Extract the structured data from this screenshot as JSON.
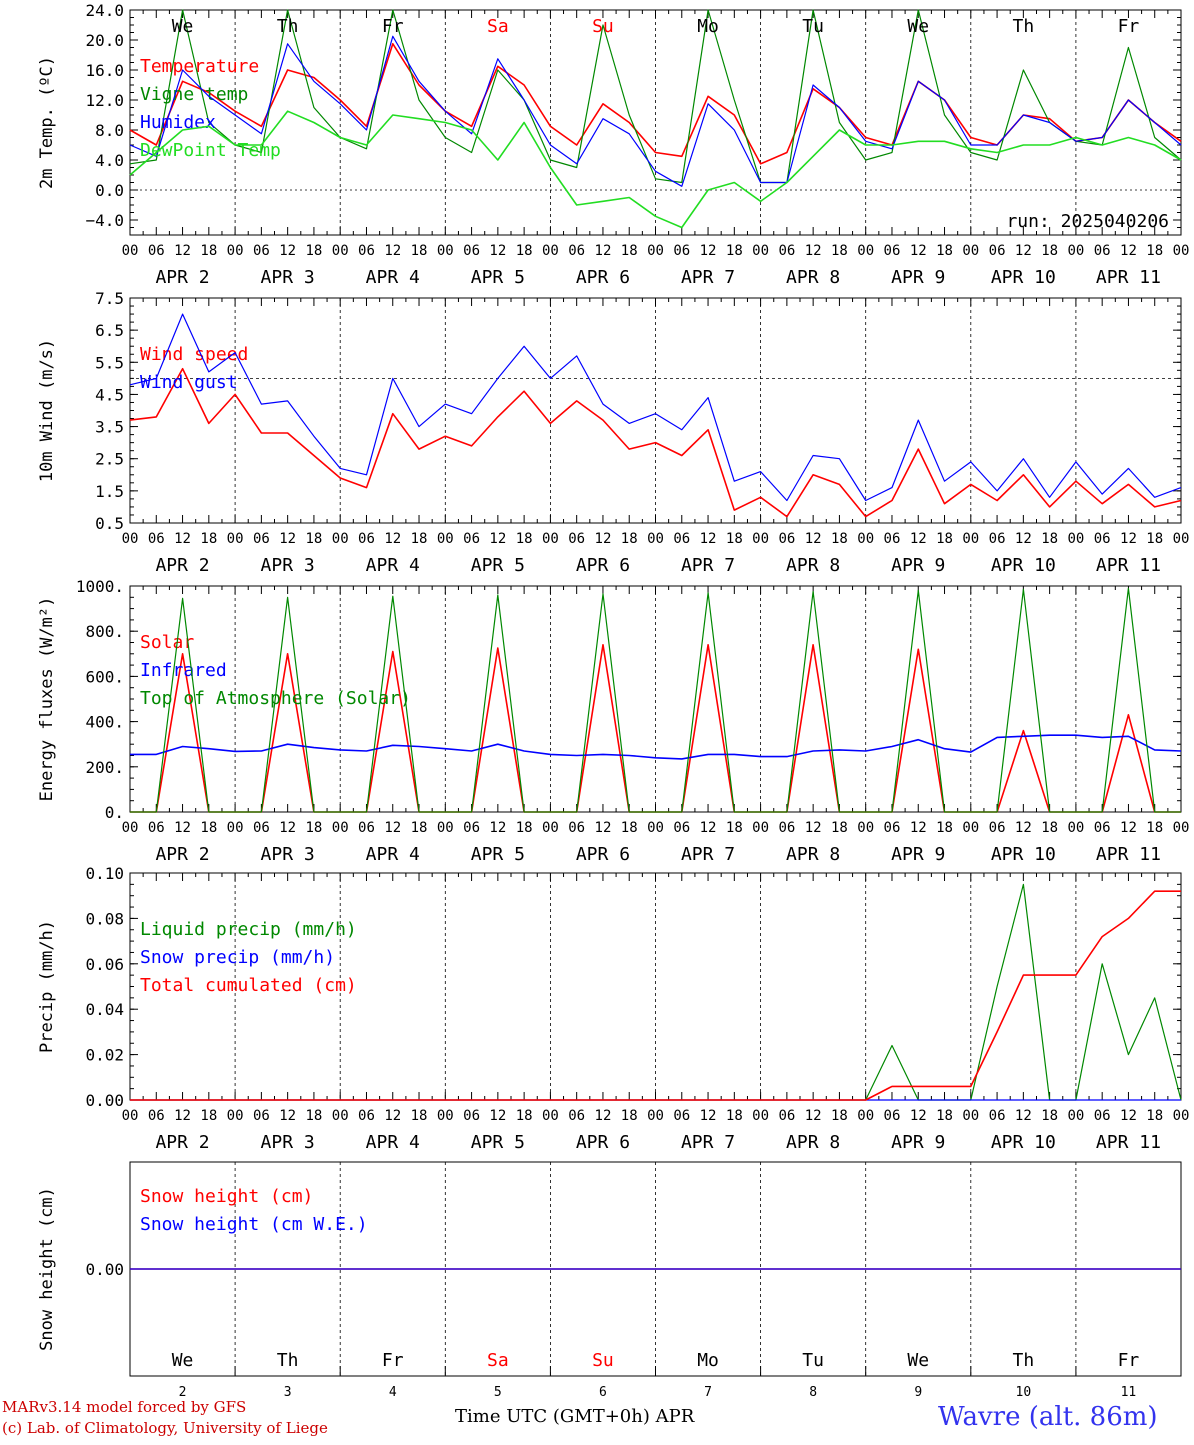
{
  "days": [
    "We",
    "Th",
    "Fr",
    "Sa",
    "Su",
    "Mo",
    "Tu",
    "We",
    "Th",
    "Fr"
  ],
  "day_colors": [
    "#000000",
    "#000000",
    "#000000",
    "#ff0000",
    "#ff0000",
    "#000000",
    "#000000",
    "#000000",
    "#000000",
    "#000000"
  ],
  "date_labels": [
    "APR  2",
    "APR  3",
    "APR  4",
    "APR  5",
    "APR  6",
    "APR  7",
    "APR  8",
    "APR  9",
    "APR 10",
    "APR 11"
  ],
  "hour_ticks": [
    "00",
    "06",
    "12",
    "18"
  ],
  "last_tick": "00",
  "bottom_day_numbers": [
    "2",
    "3",
    "4",
    "5",
    "6",
    "7",
    "8",
    "9",
    "10",
    "11"
  ],
  "footer": {
    "line1": "MARv3.14 model forced by GFS",
    "line2": "(c) Lab. of Climatology, University of Liege",
    "xlabel": "Time UTC (GMT+0h)",
    "month": "APR",
    "station": "Wavre (alt. 86m)"
  },
  "colors": {
    "red": "#ff0000",
    "green": "#008800",
    "blue": "#0000ff",
    "light_green": "#22dd22"
  },
  "chart_data": [
    {
      "type": "line",
      "ylabel": "2m Temp. (ºC)",
      "yticks": [
        "24.0",
        "20.0",
        "16.0",
        "12.0",
        "8.0",
        "4.0",
        "0.0",
        "−4.0"
      ],
      "ylim": [
        -6,
        24
      ],
      "annotation": "run: 2025040206",
      "x_hours": [
        0,
        6,
        12,
        18,
        24,
        30,
        36,
        42,
        48,
        54,
        60,
        66,
        72,
        78,
        84,
        90,
        96,
        102,
        108,
        114,
        120,
        126,
        132,
        138,
        144,
        150,
        156,
        162,
        168,
        174,
        180,
        186,
        192,
        198,
        204,
        210,
        216,
        222,
        228,
        234,
        240
      ],
      "series": [
        {
          "name": "Temperature",
          "color": "red",
          "values": [
            8,
            6,
            14.5,
            13,
            10.5,
            8.5,
            16,
            15,
            12,
            8.5,
            19.5,
            14,
            10.5,
            8.5,
            16.5,
            14,
            8.5,
            6,
            11.5,
            9,
            5,
            4.5,
            12.5,
            10,
            3.5,
            5,
            13.5,
            11,
            7,
            6,
            14.5,
            12,
            7,
            6,
            10,
            9.5,
            6.5,
            7,
            12,
            9,
            6.5
          ]
        },
        {
          "name": "Vigne temp",
          "color": "green",
          "values": [
            3.5,
            4,
            24,
            9,
            6,
            5,
            24,
            11,
            7,
            5.5,
            24,
            12,
            7,
            5,
            16,
            12,
            4,
            3,
            22,
            10,
            1.5,
            1,
            24,
            12,
            1,
            1,
            24,
            9,
            4,
            5,
            24,
            10,
            5,
            4,
            16,
            9,
            6.5,
            6,
            19,
            7,
            4
          ]
        },
        {
          "name": "Humidex",
          "color": "blue",
          "values": [
            6,
            4.5,
            16,
            12.5,
            10,
            7.5,
            19.5,
            14.5,
            11.5,
            8,
            20.5,
            14.5,
            10.5,
            7.5,
            17.5,
            12,
            6,
            3.5,
            9.5,
            7.5,
            2.5,
            0.5,
            11.5,
            8,
            1,
            1,
            14,
            11,
            6.5,
            5.5,
            14.5,
            12,
            6,
            6,
            10,
            9,
            6.5,
            7,
            12,
            9,
            6
          ]
        },
        {
          "name": "DewPoint Temp",
          "color": "light_green",
          "values": [
            2,
            5,
            8,
            8.5,
            6,
            6,
            10.5,
            9,
            7,
            6,
            10,
            9.5,
            9,
            8,
            4,
            9,
            3,
            -2,
            -1.5,
            -1,
            -3.5,
            -5,
            0,
            1,
            -1.5,
            1,
            4.5,
            8,
            6,
            6,
            6.5,
            6.5,
            5.5,
            5,
            6,
            6,
            7,
            6,
            7,
            6,
            4
          ]
        }
      ]
    },
    {
      "type": "line",
      "ylabel": "10m Wind (m/s)",
      "yticks": [
        "7.5",
        "6.5",
        "5.5",
        "4.5",
        "3.5",
        "2.5",
        "1.5",
        "0.5"
      ],
      "ylim": [
        0.5,
        7.5
      ],
      "dashed_y": 5.0,
      "x_hours": [
        0,
        6,
        12,
        18,
        24,
        30,
        36,
        42,
        48,
        54,
        60,
        66,
        72,
        78,
        84,
        90,
        96,
        102,
        108,
        114,
        120,
        126,
        132,
        138,
        144,
        150,
        156,
        162,
        168,
        174,
        180,
        186,
        192,
        198,
        204,
        210,
        216,
        222,
        228,
        234,
        240
      ],
      "series": [
        {
          "name": "Wind speed",
          "color": "red",
          "values": [
            3.7,
            3.8,
            5.3,
            3.6,
            4.5,
            3.3,
            3.3,
            2.6,
            1.9,
            1.6,
            3.9,
            2.8,
            3.2,
            2.9,
            3.8,
            4.6,
            3.6,
            4.3,
            3.7,
            2.8,
            3.0,
            2.6,
            3.4,
            0.9,
            1.3,
            0.7,
            2.0,
            1.7,
            0.7,
            1.2,
            2.8,
            1.1,
            1.7,
            1.2,
            2.0,
            1.0,
            1.8,
            1.1,
            1.7,
            1.0,
            1.2
          ]
        },
        {
          "name": "Wind gust",
          "color": "blue",
          "values": [
            4.8,
            5.0,
            7.0,
            5.2,
            5.8,
            4.2,
            4.3,
            3.2,
            2.2,
            2.0,
            5.0,
            3.5,
            4.2,
            3.9,
            5.0,
            6.0,
            5.0,
            5.7,
            4.2,
            3.6,
            3.9,
            3.4,
            4.4,
            1.8,
            2.1,
            1.2,
            2.6,
            2.5,
            1.2,
            1.6,
            3.7,
            1.8,
            2.4,
            1.5,
            2.5,
            1.3,
            2.4,
            1.4,
            2.2,
            1.3,
            1.6
          ]
        }
      ]
    },
    {
      "type": "line",
      "ylabel": "Energy fluxes (W/m²)",
      "yticks": [
        "1000.",
        "800.",
        "600.",
        "400.",
        "200.",
        "0."
      ],
      "ylim": [
        0,
        1000
      ],
      "x_hours": [
        0,
        6,
        12,
        18,
        24,
        30,
        36,
        42,
        48,
        54,
        60,
        66,
        72,
        78,
        84,
        90,
        96,
        102,
        108,
        114,
        120,
        126,
        132,
        138,
        144,
        150,
        156,
        162,
        168,
        174,
        180,
        186,
        192,
        198,
        204,
        210,
        216,
        222,
        228,
        234,
        240
      ],
      "series": [
        {
          "name": "Solar",
          "color": "red",
          "values": [
            0,
            0,
            700,
            0,
            0,
            0,
            700,
            0,
            0,
            0,
            710,
            0,
            0,
            0,
            725,
            0,
            0,
            0,
            740,
            0,
            0,
            0,
            740,
            0,
            0,
            0,
            740,
            0,
            0,
            0,
            720,
            0,
            0,
            0,
            360,
            0,
            0,
            0,
            430,
            0,
            0
          ]
        },
        {
          "name": "Infrared",
          "color": "blue",
          "values": [
            255,
            255,
            290,
            280,
            268,
            270,
            300,
            285,
            275,
            270,
            295,
            290,
            280,
            270,
            300,
            270,
            255,
            250,
            255,
            250,
            240,
            235,
            255,
            255,
            245,
            245,
            270,
            275,
            270,
            290,
            320,
            280,
            265,
            330,
            335,
            340,
            340,
            330,
            335,
            275,
            270
          ]
        },
        {
          "name": "Top of Atmosphere (Solar)",
          "color": "green",
          "values": [
            0,
            0,
            945,
            0,
            0,
            0,
            950,
            0,
            0,
            0,
            955,
            0,
            0,
            0,
            960,
            0,
            0,
            0,
            965,
            0,
            0,
            0,
            970,
            0,
            0,
            0,
            975,
            0,
            0,
            0,
            980,
            0,
            0,
            0,
            985,
            0,
            0,
            0,
            990,
            0,
            0
          ]
        }
      ]
    },
    {
      "type": "line",
      "ylabel": "Precip (mm/h)",
      "yticks": [
        "0.10",
        "0.08",
        "0.06",
        "0.04",
        "0.02",
        "0.00"
      ],
      "ylim": [
        0,
        0.1
      ],
      "x_hours": [
        0,
        6,
        12,
        18,
        24,
        30,
        36,
        42,
        48,
        54,
        60,
        66,
        72,
        78,
        84,
        90,
        96,
        102,
        108,
        114,
        120,
        126,
        132,
        138,
        144,
        150,
        156,
        162,
        168,
        174,
        180,
        186,
        192,
        198,
        204,
        210,
        216,
        222,
        228,
        234,
        240
      ],
      "series": [
        {
          "name": "Liquid precip (mm/h)",
          "color": "green",
          "values": [
            0,
            0,
            0,
            0,
            0,
            0,
            0,
            0,
            0,
            0,
            0,
            0,
            0,
            0,
            0,
            0,
            0,
            0,
            0,
            0,
            0,
            0,
            0,
            0,
            0,
            0,
            0,
            0,
            0,
            0.024,
            0,
            0,
            0,
            0.05,
            0.095,
            0,
            0,
            0.06,
            0.02,
            0.045,
            0
          ]
        },
        {
          "name": "Snow precip (mm/h)",
          "color": "blue",
          "values": [
            0,
            0,
            0,
            0,
            0,
            0,
            0,
            0,
            0,
            0,
            0,
            0,
            0,
            0,
            0,
            0,
            0,
            0,
            0,
            0,
            0,
            0,
            0,
            0,
            0,
            0,
            0,
            0,
            0,
            0,
            0,
            0,
            0,
            0,
            0,
            0,
            0,
            0,
            0,
            0,
            0
          ]
        },
        {
          "name": "Total cumulated (cm)",
          "color": "red",
          "values": [
            0,
            0,
            0,
            0,
            0,
            0,
            0,
            0,
            0,
            0,
            0,
            0,
            0,
            0,
            0,
            0,
            0,
            0,
            0,
            0,
            0,
            0,
            0,
            0,
            0,
            0,
            0,
            0,
            0,
            0.006,
            0.006,
            0.006,
            0.006,
            0.03,
            0.055,
            0.055,
            0.055,
            0.072,
            0.08,
            0.092,
            0.092
          ]
        }
      ]
    },
    {
      "type": "line",
      "ylabel": "Snow height (cm)",
      "yticks": [
        "0.00"
      ],
      "ylim": [
        -1,
        1
      ],
      "x_hours": [
        0,
        240
      ],
      "series": [
        {
          "name": "Snow height (cm)",
          "color": "red",
          "values": [
            0,
            0
          ]
        },
        {
          "name": "Snow height (cm W.E.)",
          "color": "blue",
          "values": [
            0,
            0
          ]
        }
      ]
    }
  ]
}
